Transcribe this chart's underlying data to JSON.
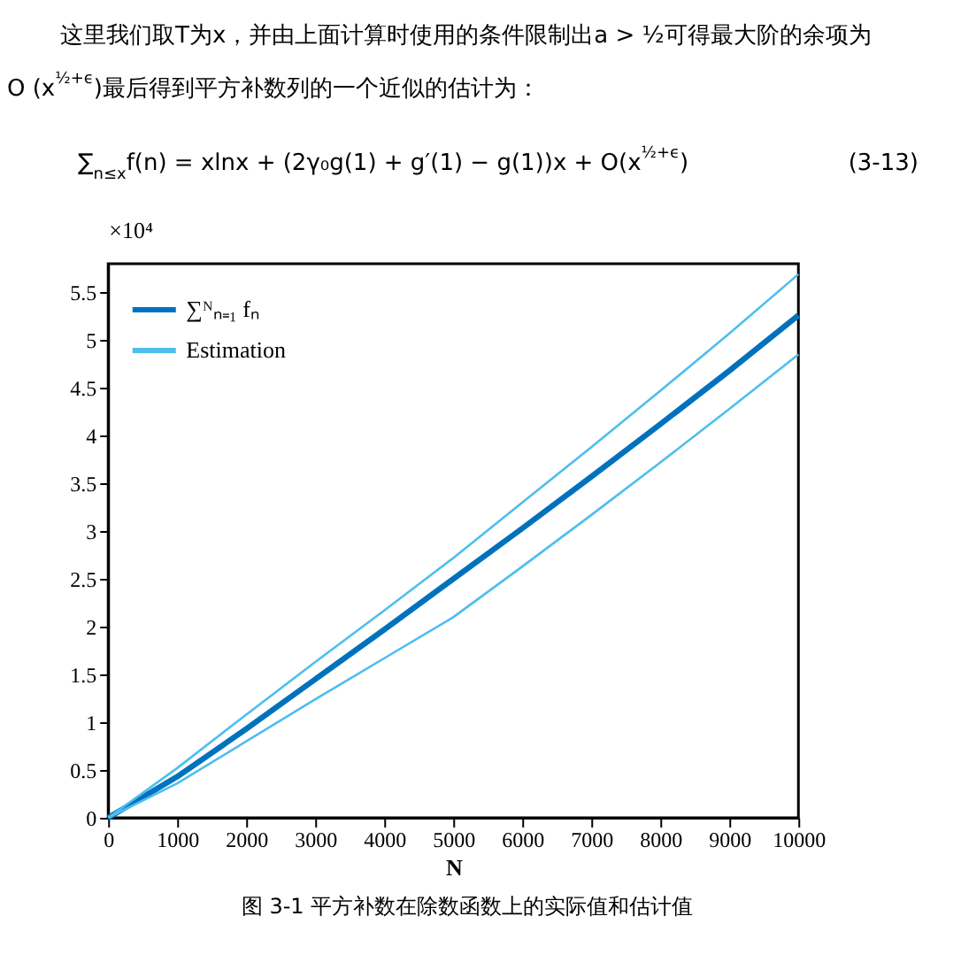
{
  "chart_data": {
    "type": "line",
    "xlabel": "N",
    "ylabel": "×10⁴",
    "annotations": [
      "这里我们取T为x，并由上面计算时使用的条件限制出a > ½可得最大阶的余项为",
      "O (x$^{½+ϵ}$)最后得到平方补数列的一个近似的估计为：",
      "∑$_{n≤x}$f(n) = xlnx + (2γ₀g(1) + g′(1) − g(1))x + O(x$^{½+ϵ}$)",
      "(3-13)",
      "图 3-1 平方补数在除数函数上的实际值和估计值"
    ],
    "x": [
      0,
      1000,
      2000,
      3000,
      4000,
      5000,
      6000,
      7000,
      8000,
      9000,
      10000
    ],
    "series": [
      {
        "name": "∑ᴺₙ₌₁ fₙ",
        "color": "#0072bd",
        "values": [
          0,
          0.43,
          0.93,
          1.45,
          1.97,
          2.5,
          3.03,
          3.57,
          4.12,
          4.68,
          5.26
        ]
      },
      {
        "name": "Estimation",
        "color": "#4dbeee",
        "values": [
          0,
          0.52,
          1.08,
          1.63,
          2.17,
          2.72,
          3.3,
          3.88,
          4.47,
          5.07,
          5.69
        ]
      },
      {
        "color": "#4dbeee",
        "values": [
          0,
          0.36,
          0.8,
          1.24,
          1.67,
          2.1,
          2.63,
          3.17,
          3.72,
          4.28,
          4.85
        ]
      }
    ],
    "xlim": [
      0,
      10000
    ],
    "xticks": [
      0,
      1000,
      2000,
      3000,
      4000,
      5000,
      6000,
      7000,
      8000,
      9000,
      10000
    ],
    "ylim": [
      0,
      5.8
    ],
    "yticks": [
      0,
      0.5,
      1,
      1.5,
      2,
      2.5,
      3,
      3.5,
      4,
      4.5,
      5,
      5.5
    ],
    "grid": false,
    "legend": "top left",
    "marker": "none",
    "line_style": "solid"
  }
}
